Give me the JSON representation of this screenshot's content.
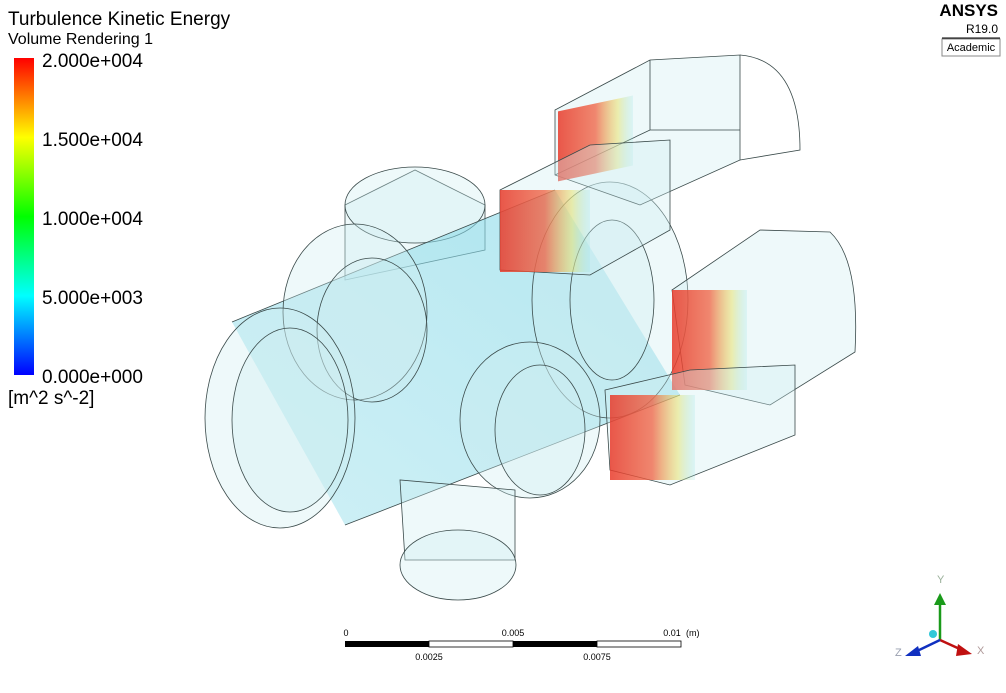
{
  "legend": {
    "title": "Turbulence Kinetic Energy",
    "subtitle": "Volume Rendering 1",
    "labels": [
      "2.000e+004",
      "1.500e+004",
      "1.000e+004",
      "5.000e+003",
      "0.000e+000"
    ],
    "unit": "[m^2 s^-2]"
  },
  "logo": {
    "brand": "ANSYS",
    "version": "R19.0",
    "license": "Academic"
  },
  "scale_bar": {
    "top_labels": [
      "0",
      "0.005",
      "0.01"
    ],
    "unit": "(m)",
    "bottom_labels": [
      "0.0025",
      "0.0075"
    ]
  },
  "triad": {
    "y": "Y",
    "z": "Z",
    "x": "X"
  }
}
